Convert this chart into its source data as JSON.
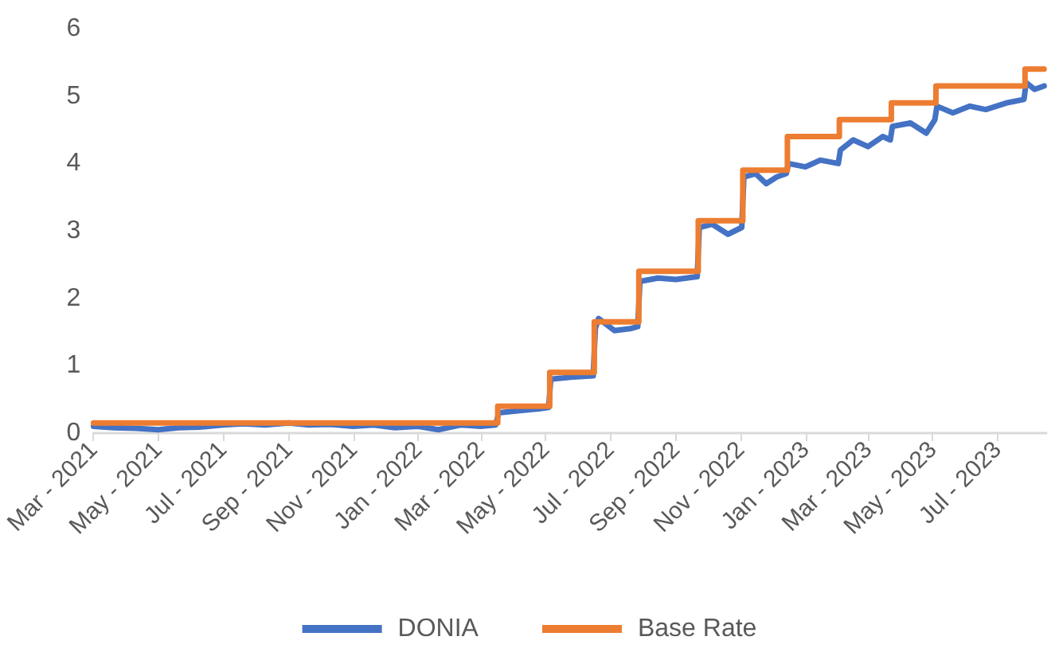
{
  "chart_data": {
    "type": "line",
    "xlim": [
      "2021-03-01",
      "2023-08-16"
    ],
    "xticks": [
      {
        "value": "2021-03",
        "label": "Mar - 2021"
      },
      {
        "value": "2021-05",
        "label": "May - 2021"
      },
      {
        "value": "2021-07",
        "label": "Jul - 2021"
      },
      {
        "value": "2021-09",
        "label": "Sep - 2021"
      },
      {
        "value": "2021-11",
        "label": "Nov - 2021"
      },
      {
        "value": "2022-01",
        "label": "Jan - 2022"
      },
      {
        "value": "2022-03",
        "label": "Mar - 2022"
      },
      {
        "value": "2022-05",
        "label": "May - 2022"
      },
      {
        "value": "2022-07",
        "label": "Jul - 2022"
      },
      {
        "value": "2022-09",
        "label": "Sep - 2022"
      },
      {
        "value": "2022-11",
        "label": "Nov - 2022"
      },
      {
        "value": "2023-01",
        "label": "Jan - 2023"
      },
      {
        "value": "2023-03",
        "label": "Mar - 2023"
      },
      {
        "value": "2023-05",
        "label": "May - 2023"
      },
      {
        "value": "2023-07",
        "label": "Jul - 2023"
      }
    ],
    "ylim": [
      0,
      6
    ],
    "yticks": [
      0,
      1,
      2,
      3,
      4,
      5,
      6
    ],
    "grid": false,
    "legend": "bottom",
    "marker": "none",
    "line_style": "solid",
    "series": [
      {
        "name": "DONIA",
        "color": "#4472c4",
        "x": [
          "2021-03-01",
          "2021-03-20",
          "2021-04-10",
          "2021-05-01",
          "2021-05-20",
          "2021-06-10",
          "2021-07-01",
          "2021-07-20",
          "2021-08-10",
          "2021-09-01",
          "2021-09-20",
          "2021-10-10",
          "2021-11-01",
          "2021-11-20",
          "2021-12-10",
          "2022-01-01",
          "2022-01-20",
          "2022-02-10",
          "2022-03-01",
          "2022-03-15",
          "2022-03-18",
          "2022-04-05",
          "2022-04-25",
          "2022-05-04",
          "2022-05-06",
          "2022-05-25",
          "2022-06-15",
          "2022-06-17",
          "2022-06-20",
          "2022-07-05",
          "2022-07-20",
          "2022-07-27",
          "2022-07-29",
          "2022-08-15",
          "2022-09-01",
          "2022-09-21",
          "2022-09-23",
          "2022-10-05",
          "2022-10-20",
          "2022-11-02",
          "2022-11-04",
          "2022-11-15",
          "2022-11-25",
          "2022-12-05",
          "2022-12-14",
          "2022-12-16",
          "2023-01-01",
          "2023-01-15",
          "2023-02-01",
          "2023-02-03",
          "2023-02-15",
          "2023-03-01",
          "2023-03-15",
          "2023-03-22",
          "2023-03-24",
          "2023-04-10",
          "2023-04-25",
          "2023-05-03",
          "2023-05-05",
          "2023-05-20",
          "2023-06-05",
          "2023-06-20",
          "2023-07-10",
          "2023-07-26",
          "2023-07-28",
          "2023-08-05",
          "2023-08-14"
        ],
        "values": [
          0.1,
          0.08,
          0.07,
          0.05,
          0.08,
          0.09,
          0.12,
          0.14,
          0.12,
          0.15,
          0.12,
          0.13,
          0.1,
          0.12,
          0.08,
          0.1,
          0.05,
          0.12,
          0.1,
          0.12,
          0.3,
          0.33,
          0.36,
          0.38,
          0.8,
          0.83,
          0.85,
          1.55,
          1.7,
          1.52,
          1.55,
          1.58,
          2.25,
          2.3,
          2.28,
          2.32,
          3.05,
          3.1,
          2.95,
          3.05,
          3.8,
          3.85,
          3.7,
          3.8,
          3.85,
          4.0,
          3.95,
          4.05,
          4.0,
          4.2,
          4.35,
          4.25,
          4.4,
          4.35,
          4.55,
          4.6,
          4.45,
          4.65,
          4.85,
          4.75,
          4.85,
          4.8,
          4.9,
          4.95,
          5.2,
          5.1,
          5.15
        ]
      },
      {
        "name": "Base Rate",
        "color": "#ed7d31",
        "type": "step",
        "x": [
          "2021-03-01",
          "2022-03-17",
          "2022-05-05",
          "2022-06-16",
          "2022-07-28",
          "2022-09-22",
          "2022-11-03",
          "2022-12-15",
          "2023-02-02",
          "2023-03-23",
          "2023-05-04",
          "2023-07-27",
          "2023-08-14"
        ],
        "values": [
          0.15,
          0.4,
          0.9,
          1.65,
          2.4,
          3.15,
          3.9,
          4.4,
          4.65,
          4.9,
          5.15,
          5.4,
          5.4
        ]
      }
    ]
  }
}
